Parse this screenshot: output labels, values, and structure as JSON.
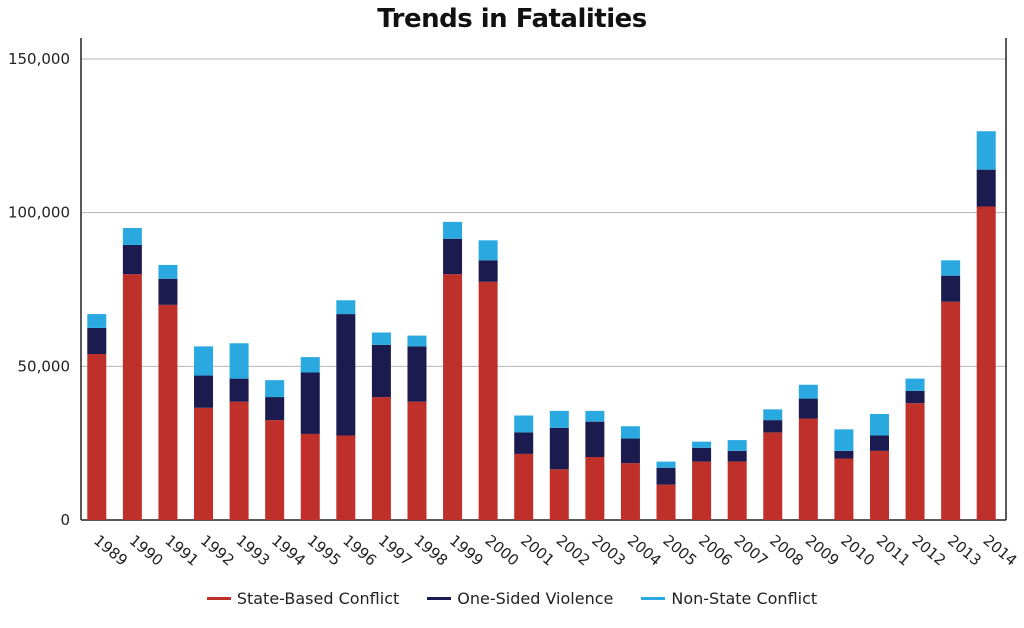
{
  "chart_data": {
    "type": "bar",
    "stacked": true,
    "title": "Trends in Fatalities",
    "xlabel": "",
    "ylabel": "",
    "ylim": [
      0,
      150000
    ],
    "yticks": [
      0,
      50000,
      100000,
      150000
    ],
    "ytick_labels": [
      "0",
      "50,000",
      "100,000",
      "150,000"
    ],
    "grid": true,
    "legend_position": "bottom",
    "categories": [
      "1989",
      "1990",
      "1991",
      "1992",
      "1993",
      "1994",
      "1995",
      "1996",
      "1997",
      "1998",
      "1999",
      "2000",
      "2001",
      "2002",
      "2003",
      "2004",
      "2005",
      "2006",
      "2007",
      "2008",
      "2009",
      "2010",
      "2011",
      "2012",
      "2013",
      "2014"
    ],
    "series": [
      {
        "name": "State-Based Conflict",
        "color": "#c0302b",
        "values": [
          54000,
          80000,
          70000,
          36500,
          38500,
          32500,
          28000,
          27500,
          40000,
          38500,
          80000,
          77500,
          21500,
          16500,
          20500,
          18500,
          11500,
          19000,
          19000,
          28500,
          33000,
          20000,
          22500,
          38000,
          71000,
          102000
        ]
      },
      {
        "name": "One-Sided Violence",
        "color": "#1c1b4f",
        "values": [
          8500,
          9500,
          8500,
          10500,
          7500,
          7500,
          20000,
          39500,
          17000,
          18000,
          11500,
          7000,
          7000,
          13500,
          11500,
          8000,
          5500,
          4500,
          3500,
          4000,
          6500,
          2500,
          5000,
          4000,
          8500,
          12000
        ]
      },
      {
        "name": "Non-State Conflict",
        "color": "#29a9e0",
        "values": [
          4500,
          5500,
          4500,
          9500,
          11500,
          5500,
          5000,
          4500,
          4000,
          3500,
          5500,
          6500,
          5500,
          5500,
          3500,
          4000,
          2000,
          2000,
          3500,
          3500,
          4500,
          7000,
          7000,
          4000,
          5000,
          12500
        ]
      }
    ]
  }
}
